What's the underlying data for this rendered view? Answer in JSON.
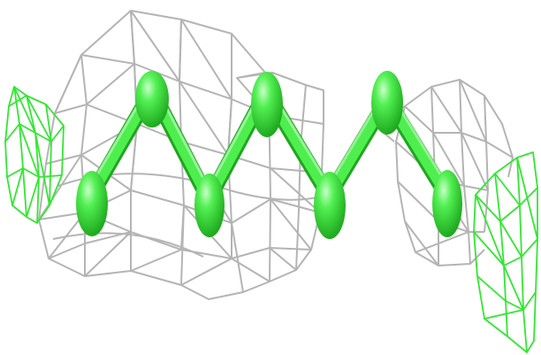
{
  "image": {
    "subject": "molecular-structure-with-electron-density-mesh",
    "colors": {
      "background": "#ffffff",
      "density_mesh": "#b4b4b4",
      "difference_mesh": "#33e633",
      "molecule": "#44ee44",
      "molecule_shadow": "#23b523",
      "molecule_highlight": "#c8ffc8"
    }
  }
}
